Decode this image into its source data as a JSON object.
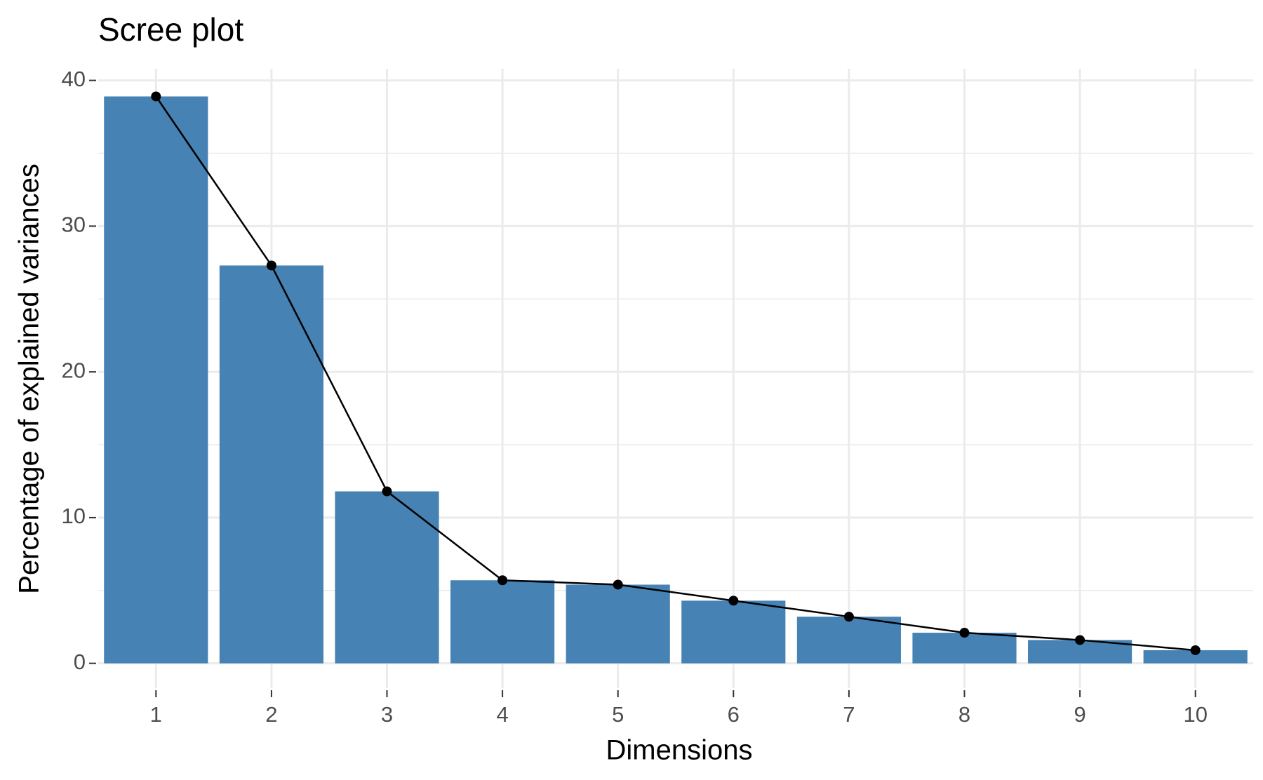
{
  "chart_data": {
    "type": "bar",
    "title": "Scree plot",
    "x_label": "Dimensions",
    "y_label": "Percentage of explained variances",
    "categories": [
      "1",
      "2",
      "3",
      "4",
      "5",
      "6",
      "7",
      "8",
      "9",
      "10"
    ],
    "values": [
      38.9,
      27.3,
      11.8,
      5.7,
      5.4,
      4.3,
      3.2,
      2.1,
      1.6,
      0.9
    ],
    "color": "#4682b4",
    "line_color": "#000000",
    "line": true,
    "ylim": [
      -1.7,
      40.8
    ],
    "yticks": [
      0,
      10,
      20,
      30,
      40
    ],
    "minor_yticks": [
      5,
      15,
      25,
      35
    ],
    "grid": true
  }
}
